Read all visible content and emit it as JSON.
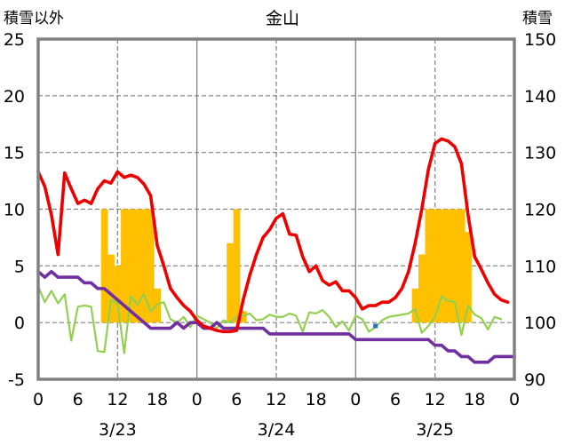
{
  "chart_data": {
    "type": "line",
    "title": "金山",
    "left_axis_label": "積雪以外",
    "right_axis_label": "積雪",
    "left_ylim": [
      -5,
      25
    ],
    "right_ylim": [
      90,
      150
    ],
    "left_ticks": [
      "25",
      "20",
      "15",
      "10",
      "5",
      "0",
      "-5"
    ],
    "right_ticks": [
      "150",
      "140",
      "130",
      "120",
      "110",
      "100",
      "90"
    ],
    "x_range_hours": [
      0,
      72
    ],
    "x_ticks": [
      "0",
      "6",
      "12",
      "18",
      "0",
      "6",
      "12",
      "18",
      "0",
      "6",
      "12",
      "18",
      "0"
    ],
    "date_labels": [
      "3/23",
      "3/24",
      "3/25"
    ],
    "colors": {
      "temperature": "#ee0000",
      "snow_depth": "#7030a0",
      "wind": "#92d050",
      "precipitation": "#ffc000",
      "frame": "#808080",
      "grid": "#808080",
      "marker": "#2e75b6"
    },
    "series": [
      {
        "name": "temperature",
        "axis": "left",
        "x": [
          0,
          1,
          2,
          3,
          4,
          5,
          6,
          7,
          8,
          9,
          10,
          11,
          12,
          13,
          14,
          15,
          16,
          17,
          18,
          19,
          20,
          21,
          22,
          23,
          24,
          25,
          26,
          27,
          28,
          29,
          30,
          31,
          32,
          33,
          34,
          35,
          36,
          37,
          38,
          39,
          40,
          41,
          42,
          43,
          44,
          45,
          46,
          47,
          48,
          49,
          50,
          51,
          52,
          53,
          54,
          55,
          56,
          57,
          58,
          59,
          60,
          61,
          62,
          63,
          64,
          65,
          66,
          67,
          68,
          69,
          70,
          71
        ],
        "values": [
          13.3,
          12.0,
          9.5,
          6.0,
          13.2,
          11.8,
          10.5,
          10.8,
          10.5,
          11.8,
          12.5,
          12.3,
          13.3,
          12.8,
          13.0,
          12.8,
          12.2,
          11.2,
          6.8,
          5.0,
          3.0,
          2.2,
          1.5,
          1.0,
          0.2,
          -0.3,
          -0.5,
          -0.7,
          -0.8,
          -0.8,
          -0.7,
          2.0,
          4.2,
          6.0,
          7.5,
          8.2,
          9.2,
          9.6,
          7.8,
          7.7,
          5.8,
          4.5,
          5.0,
          3.7,
          3.3,
          3.6,
          2.8,
          2.8,
          2.2,
          1.2,
          1.5,
          1.5,
          1.8,
          1.8,
          2.2,
          3.0,
          4.5,
          7.0,
          10.0,
          13.5,
          15.8,
          16.2,
          16.0,
          15.5,
          14.0,
          9.5,
          5.8,
          4.7,
          3.5,
          2.5,
          2.0,
          1.8
        ]
      },
      {
        "name": "snow_depth",
        "axis": "right",
        "x": [
          0,
          1,
          2,
          3,
          4,
          5,
          6,
          7,
          8,
          9,
          10,
          11,
          12,
          13,
          14,
          15,
          16,
          17,
          18,
          19,
          20,
          21,
          22,
          23,
          24,
          25,
          26,
          27,
          28,
          29,
          30,
          31,
          32,
          33,
          34,
          35,
          36,
          37,
          38,
          39,
          40,
          41,
          42,
          43,
          44,
          45,
          46,
          47,
          48,
          49,
          50,
          51,
          52,
          53,
          54,
          55,
          56,
          57,
          58,
          59,
          60,
          61,
          62,
          63,
          64,
          65,
          66,
          67,
          68,
          69,
          70,
          71,
          72
        ],
        "values": [
          109,
          108,
          109,
          108,
          108,
          108,
          108,
          107,
          107,
          106,
          106,
          105,
          104,
          103,
          102,
          101,
          100,
          99,
          99,
          99,
          99,
          100,
          99,
          100,
          100,
          99,
          99,
          100,
          99,
          99,
          99,
          99,
          99,
          99,
          99,
          98,
          98,
          98,
          98,
          98,
          98,
          98,
          98,
          98,
          98,
          98,
          98,
          98,
          97,
          97,
          97,
          97,
          97,
          97,
          97,
          97,
          97,
          97,
          97,
          97,
          96,
          96,
          95,
          95,
          94,
          94,
          93,
          93,
          93,
          94,
          94,
          94,
          94
        ]
      },
      {
        "name": "wind",
        "axis": "left",
        "x": [
          0,
          1,
          2,
          3,
          4,
          5,
          6,
          7,
          8,
          9,
          10,
          11,
          12,
          13,
          14,
          15,
          16,
          17,
          18,
          19,
          20,
          21,
          22,
          23,
          24,
          25,
          26,
          27,
          28,
          29,
          30,
          31,
          32,
          33,
          34,
          35,
          36,
          37,
          38,
          39,
          40,
          41,
          42,
          43,
          44,
          45,
          46,
          47,
          48,
          49,
          50,
          51,
          52,
          53,
          54,
          55,
          56,
          57,
          58,
          59,
          60,
          61,
          62,
          63,
          64,
          65,
          66,
          67,
          68,
          69,
          70,
          71
        ],
        "values": [
          3.2,
          1.8,
          2.8,
          1.7,
          2.5,
          -1.6,
          1.4,
          1.5,
          1.4,
          -2.5,
          -2.6,
          2.0,
          1.7,
          -2.7,
          2.3,
          1.6,
          2.5,
          1.0,
          1.6,
          1.8,
          0.3,
          0.0,
          0.5,
          -0.4,
          0.6,
          0.3,
          0.0,
          -0.5,
          0.2,
          0.0,
          0.5,
          0.6,
          0.8,
          0.2,
          0.3,
          0.7,
          0.5,
          0.5,
          0.8,
          0.6,
          -0.8,
          0.9,
          0.8,
          1.1,
          0.5,
          -0.4,
          0.1,
          -0.7,
          0.6,
          0.3,
          -0.8,
          -0.4,
          0.2,
          0.5,
          0.6,
          0.7,
          0.8,
          1.2,
          -0.9,
          -0.3,
          0.5,
          2.3,
          1.9,
          1.8,
          -1.1,
          1.5,
          0.7,
          0.4,
          -0.6,
          0.5,
          0.3,
          null
        ]
      },
      {
        "name": "precipitation",
        "type": "bar",
        "axis": "left",
        "x": [
          10,
          11,
          12,
          13,
          14,
          15,
          16,
          17,
          18,
          29,
          30,
          31,
          57,
          58,
          59,
          60,
          61,
          62,
          63,
          64,
          65
        ],
        "values": [
          10,
          6,
          5,
          10,
          10,
          10,
          10,
          10,
          3,
          7,
          10,
          1,
          3,
          6,
          10,
          10,
          10,
          10,
          10,
          10,
          8
        ]
      }
    ],
    "markers": [
      {
        "name": "small-square",
        "x": 51,
        "value": -0.3
      }
    ]
  }
}
